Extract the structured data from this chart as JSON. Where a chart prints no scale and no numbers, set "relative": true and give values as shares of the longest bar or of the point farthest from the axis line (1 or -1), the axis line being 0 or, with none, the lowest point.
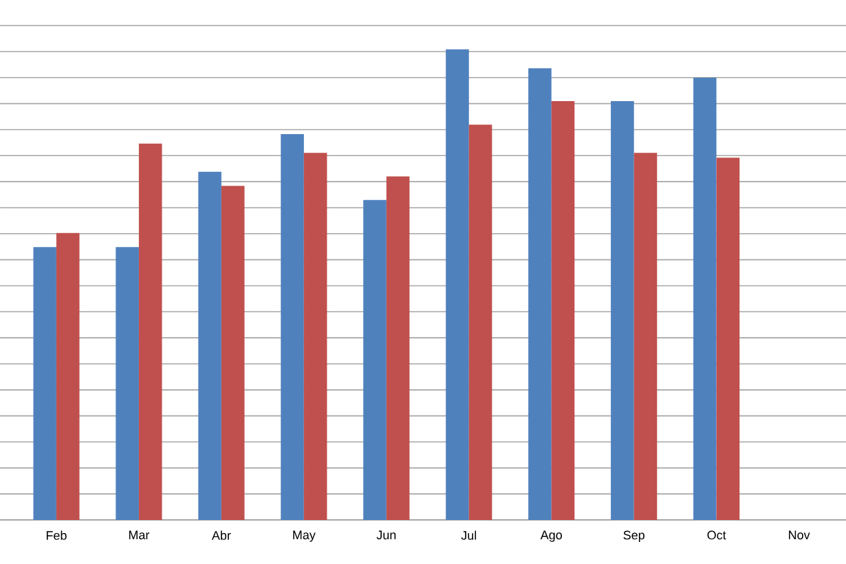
{
  "chart_data": {
    "type": "bar",
    "relative": true,
    "grid": "y",
    "categories": [
      "Feb",
      "Mar",
      "Abr",
      "May",
      "Jun",
      "Jul",
      "Ago",
      "Sep",
      "Oct",
      "Nov"
    ],
    "series": [
      {
        "color": "#4f81bd",
        "values": [
          0.58,
          0.58,
          0.74,
          0.82,
          0.68,
          1,
          0.96,
          0.89,
          0.94,
          null
        ]
      },
      {
        "color": "#c0504d",
        "values": [
          0.61,
          0.8,
          0.71,
          0.78,
          0.73,
          0.84,
          0.89,
          0.78,
          0.77,
          null
        ]
      }
    ]
  }
}
